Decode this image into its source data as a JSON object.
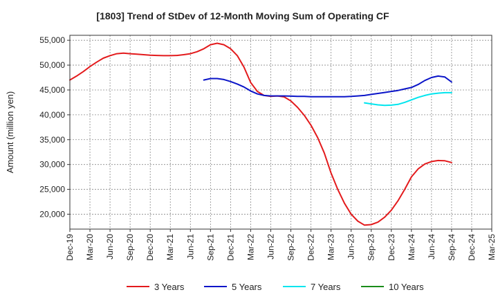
{
  "chart_data": {
    "type": "line",
    "title": "[1803]  Trend of StDev of 12-Month Moving Sum of Operating CF",
    "ylabel": "Amount (million yen)",
    "xlabel": "",
    "ylim": [
      17000,
      56000
    ],
    "yticks": [
      20000,
      25000,
      30000,
      35000,
      40000,
      45000,
      50000,
      55000
    ],
    "ytick_labels": [
      "20,000",
      "25,000",
      "30,000",
      "35,000",
      "40,000",
      "45,000",
      "50,000",
      "55,000"
    ],
    "xticks": [
      "Dec-19",
      "Mar-20",
      "Jun-20",
      "Sep-20",
      "Dec-20",
      "Mar-21",
      "Jun-21",
      "Sep-21",
      "Dec-21",
      "Mar-22",
      "Jun-22",
      "Sep-22",
      "Dec-22",
      "Mar-23",
      "Jun-23",
      "Sep-23",
      "Dec-23",
      "Mar-24",
      "Jun-24",
      "Sep-24",
      "Dec-24",
      "Mar-25"
    ],
    "grid": true,
    "legend_position": "bottom",
    "series": [
      {
        "name": "3 Years",
        "color": "#e31a1c",
        "points": [
          [
            "Dec-19",
            47000
          ],
          [
            "Jan-20",
            47800
          ],
          [
            "Feb-20",
            48700
          ],
          [
            "Mar-20",
            49700
          ],
          [
            "Apr-20",
            50600
          ],
          [
            "May-20",
            51400
          ],
          [
            "Jun-20",
            51900
          ],
          [
            "Jul-20",
            52300
          ],
          [
            "Aug-20",
            52400
          ],
          [
            "Sep-20",
            52300
          ],
          [
            "Oct-20",
            52200
          ],
          [
            "Nov-20",
            52100
          ],
          [
            "Dec-20",
            52000
          ],
          [
            "Jan-21",
            51950
          ],
          [
            "Feb-21",
            51900
          ],
          [
            "Mar-21",
            51900
          ],
          [
            "Apr-21",
            51950
          ],
          [
            "May-21",
            52100
          ],
          [
            "Jun-21",
            52300
          ],
          [
            "Jul-21",
            52700
          ],
          [
            "Aug-21",
            53300
          ],
          [
            "Sep-21",
            54100
          ],
          [
            "Oct-21",
            54400
          ],
          [
            "Nov-21",
            54100
          ],
          [
            "Dec-21",
            53300
          ],
          [
            "Jan-22",
            51900
          ],
          [
            "Feb-22",
            49600
          ],
          [
            "Mar-22",
            46500
          ],
          [
            "Apr-22",
            44700
          ],
          [
            "May-22",
            43900
          ],
          [
            "Jun-22",
            43700
          ],
          [
            "Jul-22",
            43800
          ],
          [
            "Aug-22",
            43600
          ],
          [
            "Sep-22",
            42800
          ],
          [
            "Oct-22",
            41500
          ],
          [
            "Nov-22",
            39900
          ],
          [
            "Dec-22",
            37900
          ],
          [
            "Jan-23",
            35400
          ],
          [
            "Feb-23",
            32300
          ],
          [
            "Mar-23",
            28300
          ],
          [
            "Apr-23",
            25000
          ],
          [
            "May-23",
            22200
          ],
          [
            "Jun-23",
            20000
          ],
          [
            "Jul-23",
            18600
          ],
          [
            "Aug-23",
            17800
          ],
          [
            "Sep-23",
            17900
          ],
          [
            "Oct-23",
            18400
          ],
          [
            "Nov-23",
            19400
          ],
          [
            "Dec-23",
            20800
          ],
          [
            "Jan-24",
            22700
          ],
          [
            "Feb-24",
            25000
          ],
          [
            "Mar-24",
            27500
          ],
          [
            "Apr-24",
            29100
          ],
          [
            "May-24",
            30100
          ],
          [
            "Jun-24",
            30600
          ],
          [
            "Jul-24",
            30800
          ],
          [
            "Aug-24",
            30750
          ],
          [
            "Sep-24",
            30400
          ]
        ]
      },
      {
        "name": "5 Years",
        "color": "#0a14c8",
        "points": [
          [
            "Aug-21",
            47000
          ],
          [
            "Sep-21",
            47300
          ],
          [
            "Oct-21",
            47300
          ],
          [
            "Nov-21",
            47100
          ],
          [
            "Dec-21",
            46700
          ],
          [
            "Jan-22",
            46200
          ],
          [
            "Feb-22",
            45600
          ],
          [
            "Mar-22",
            44800
          ],
          [
            "Apr-22",
            44200
          ],
          [
            "May-22",
            43900
          ],
          [
            "Jun-22",
            43800
          ],
          [
            "Jul-22",
            43800
          ],
          [
            "Aug-22",
            43800
          ],
          [
            "Sep-22",
            43750
          ],
          [
            "Oct-22",
            43700
          ],
          [
            "Nov-22",
            43700
          ],
          [
            "Dec-22",
            43650
          ],
          [
            "Jan-23",
            43650
          ],
          [
            "Feb-23",
            43650
          ],
          [
            "Mar-23",
            43650
          ],
          [
            "Apr-23",
            43650
          ],
          [
            "May-23",
            43650
          ],
          [
            "Jun-23",
            43700
          ],
          [
            "Jul-23",
            43800
          ],
          [
            "Aug-23",
            43900
          ],
          [
            "Sep-23",
            44100
          ],
          [
            "Oct-23",
            44300
          ],
          [
            "Nov-23",
            44500
          ],
          [
            "Dec-23",
            44700
          ],
          [
            "Jan-24",
            44900
          ],
          [
            "Feb-24",
            45200
          ],
          [
            "Mar-24",
            45500
          ],
          [
            "Apr-24",
            46100
          ],
          [
            "May-24",
            46900
          ],
          [
            "Jun-24",
            47500
          ],
          [
            "Jul-24",
            47800
          ],
          [
            "Aug-24",
            47600
          ],
          [
            "Sep-24",
            46600
          ]
        ]
      },
      {
        "name": "7 Years",
        "color": "#00e5ee",
        "points": [
          [
            "Aug-23",
            42400
          ],
          [
            "Sep-23",
            42200
          ],
          [
            "Oct-23",
            42000
          ],
          [
            "Nov-23",
            41900
          ],
          [
            "Dec-23",
            41950
          ],
          [
            "Jan-24",
            42100
          ],
          [
            "Feb-24",
            42500
          ],
          [
            "Mar-24",
            43000
          ],
          [
            "Apr-24",
            43500
          ],
          [
            "May-24",
            43900
          ],
          [
            "Jun-24",
            44200
          ],
          [
            "Jul-24",
            44350
          ],
          [
            "Aug-24",
            44450
          ],
          [
            "Sep-24",
            44450
          ]
        ]
      },
      {
        "name": "10 Years",
        "color": "#1a8c1a",
        "points": []
      }
    ]
  }
}
